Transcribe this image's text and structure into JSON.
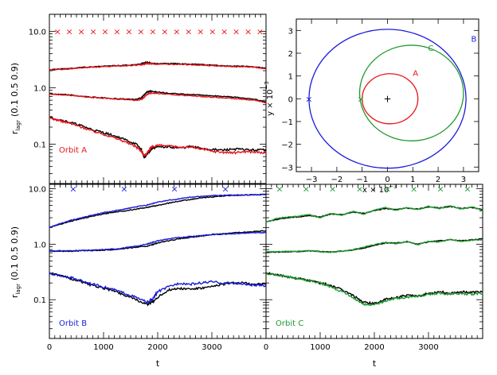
{
  "figure": {
    "panels": {
      "a": {
        "xlabel": "",
        "ylabel_main": "r",
        "ylabel_sub": "lagr",
        "ylabel_rest": "(0.1 0.5 0.9)",
        "label": "Orbit A"
      },
      "b": {
        "xlabel": "t",
        "ylabel_main": "r",
        "ylabel_sub": "lagr",
        "ylabel_rest": "(0.1 0.5 0.9)",
        "label": "Orbit B"
      },
      "c": {
        "xlabel": "t",
        "label": "Orbit C"
      },
      "orbit": {
        "xlabel": "x × 10",
        "xlabel_exp": "−3",
        "ylabel": "y × 10",
        "ylabel_exp": "−3",
        "labels": [
          "A",
          "B",
          "C"
        ]
      }
    }
  },
  "chart_data": [
    {
      "id": "a",
      "type": "line",
      "title": "",
      "xlabel": "",
      "ylabel": "r_lagr (0.1 0.5 0.9)",
      "xlim": [
        0,
        4000
      ],
      "ylim": [
        0.02,
        20
      ],
      "yscale": "log",
      "ytick_labels": [
        "0.1",
        "1.0",
        "10.0"
      ],
      "xtick_labels": [],
      "annotation": "Orbit A",
      "colors": {
        "sim": "#000000",
        "model": "#e8141c",
        "marker": "#e8141c"
      },
      "markers_x": [
        150,
        370,
        590,
        810,
        1030,
        1250,
        1470,
        1690,
        1910,
        2130,
        2350,
        2570,
        2790,
        3010,
        3230,
        3450,
        3670,
        3890
      ],
      "markers_y": 10.0,
      "x": [
        0,
        200,
        400,
        600,
        800,
        1000,
        1200,
        1400,
        1600,
        1700,
        1750,
        1800,
        1850,
        1900,
        2000,
        2200,
        2400,
        2600,
        2800,
        3000,
        3200,
        3400,
        3600,
        3800,
        4000
      ],
      "series": [
        {
          "group": "0.9",
          "color": "black",
          "values": [
            2.1,
            2.15,
            2.2,
            2.3,
            2.35,
            2.4,
            2.45,
            2.5,
            2.55,
            2.65,
            2.75,
            2.8,
            2.75,
            2.7,
            2.7,
            2.7,
            2.65,
            2.6,
            2.6,
            2.5,
            2.45,
            2.4,
            2.4,
            2.35,
            2.2
          ]
        },
        {
          "group": "0.9",
          "color": "red",
          "values": [
            2.05,
            2.1,
            2.15,
            2.25,
            2.3,
            2.35,
            2.4,
            2.45,
            2.5,
            2.55,
            2.6,
            2.7,
            2.7,
            2.65,
            2.6,
            2.6,
            2.6,
            2.55,
            2.5,
            2.45,
            2.4,
            2.35,
            2.35,
            2.3,
            2.15
          ]
        },
        {
          "group": "0.5",
          "color": "black",
          "values": [
            0.78,
            0.76,
            0.74,
            0.7,
            0.68,
            0.66,
            0.64,
            0.63,
            0.62,
            0.66,
            0.75,
            0.84,
            0.86,
            0.86,
            0.84,
            0.8,
            0.78,
            0.76,
            0.74,
            0.72,
            0.7,
            0.68,
            0.65,
            0.62,
            0.56
          ]
        },
        {
          "group": "0.5",
          "color": "red",
          "values": [
            0.77,
            0.75,
            0.73,
            0.7,
            0.67,
            0.65,
            0.63,
            0.62,
            0.6,
            0.62,
            0.68,
            0.76,
            0.8,
            0.8,
            0.79,
            0.76,
            0.74,
            0.72,
            0.7,
            0.68,
            0.66,
            0.64,
            0.62,
            0.6,
            0.54
          ]
        },
        {
          "group": "0.1",
          "color": "black",
          "values": [
            0.3,
            0.27,
            0.24,
            0.21,
            0.18,
            0.16,
            0.14,
            0.12,
            0.1,
            0.08,
            0.058,
            0.065,
            0.075,
            0.085,
            0.088,
            0.09,
            0.085,
            0.09,
            0.085,
            0.08,
            0.078,
            0.082,
            0.08,
            0.078,
            0.08
          ]
        },
        {
          "group": "0.1",
          "color": "red",
          "values": [
            0.29,
            0.26,
            0.23,
            0.2,
            0.17,
            0.15,
            0.13,
            0.11,
            0.09,
            0.075,
            0.062,
            0.07,
            0.08,
            0.09,
            0.095,
            0.092,
            0.088,
            0.09,
            0.082,
            0.075,
            0.072,
            0.07,
            0.074,
            0.072,
            0.07
          ]
        }
      ]
    },
    {
      "id": "orbit",
      "type": "line",
      "title": "",
      "xlabel": "x × 10^−3",
      "ylabel": "y × 10^−3",
      "xlim": [
        -3.6,
        3.6
      ],
      "ylim": [
        -3.2,
        3.5
      ],
      "xtick_labels": [
        "−3",
        "−2",
        "−1",
        "0",
        "1",
        "2",
        "3"
      ],
      "ytick_labels": [
        "−3",
        "−2",
        "−1",
        "0",
        "1",
        "2",
        "3"
      ],
      "orbits": [
        {
          "name": "A",
          "color": "#e8141c",
          "cx": 0.1,
          "cy": 0.0,
          "rx": 1.1,
          "ry": 1.1,
          "label_pos": [
            1.0,
            1.0
          ]
        },
        {
          "name": "B",
          "color": "#1a1adb",
          "cx": 0.0,
          "cy": 0.0,
          "rx": 3.1,
          "ry": 3.05,
          "label_pos": [
            3.3,
            2.5
          ]
        },
        {
          "name": "C",
          "color": "#1d9a2e",
          "cx": 0.95,
          "cy": 0.25,
          "rx": 2.05,
          "ry": 2.1,
          "label_pos": [
            1.6,
            2.1
          ]
        }
      ],
      "start_markers": [
        {
          "x": -3.1,
          "y": 0.0,
          "color": "#1a1adb"
        },
        {
          "x": -1.05,
          "y": 0.0,
          "color": "#1d9a2e"
        }
      ],
      "center_marker": {
        "x": 0.0,
        "y": 0.0,
        "color": "#000000"
      }
    },
    {
      "id": "b",
      "type": "line",
      "title": "",
      "xlabel": "t",
      "ylabel": "r_lagr (0.1 0.5 0.9)",
      "xlim": [
        0,
        4000
      ],
      "ylim": [
        0.02,
        12
      ],
      "yscale": "log",
      "ytick_labels": [
        "0.1",
        "1.0",
        "10.0"
      ],
      "xtick_labels": [
        "0",
        "1000",
        "2000",
        "3000"
      ],
      "annotation": "Orbit B",
      "colors": {
        "sim": "#000000",
        "model": "#1a1adb",
        "marker": "#1a1adb"
      },
      "markers_x": [
        440,
        1380,
        2310,
        3250
      ],
      "markers_y": 10.0,
      "x": [
        0,
        200,
        400,
        600,
        800,
        1000,
        1200,
        1400,
        1600,
        1800,
        1900,
        2000,
        2200,
        2400,
        2600,
        2800,
        3000,
        3200,
        3400,
        3600,
        3800,
        4000
      ],
      "series": [
        {
          "group": "0.9",
          "color": "black",
          "values": [
            2.0,
            2.3,
            2.6,
            2.9,
            3.2,
            3.5,
            3.8,
            4.0,
            4.3,
            4.6,
            4.8,
            5.0,
            5.5,
            6.0,
            6.4,
            6.8,
            7.1,
            7.4,
            7.6,
            7.7,
            7.8,
            7.9
          ]
        },
        {
          "group": "0.9",
          "color": "blue",
          "values": [
            2.0,
            2.35,
            2.7,
            3.0,
            3.35,
            3.7,
            4.0,
            4.3,
            4.7,
            5.1,
            5.4,
            5.7,
            6.2,
            6.6,
            7.0,
            7.3,
            7.5,
            7.6,
            7.7,
            7.7,
            7.8,
            7.8
          ]
        },
        {
          "group": "0.5",
          "color": "black",
          "values": [
            0.75,
            0.75,
            0.75,
            0.76,
            0.77,
            0.78,
            0.8,
            0.84,
            0.88,
            0.92,
            0.98,
            1.05,
            1.15,
            1.25,
            1.32,
            1.4,
            1.5,
            1.55,
            1.6,
            1.65,
            1.7,
            1.75
          ]
        },
        {
          "group": "0.5",
          "color": "blue",
          "values": [
            0.76,
            0.76,
            0.76,
            0.77,
            0.78,
            0.8,
            0.82,
            0.86,
            0.92,
            1.0,
            1.08,
            1.15,
            1.25,
            1.32,
            1.38,
            1.44,
            1.48,
            1.52,
            1.55,
            1.58,
            1.6,
            1.62
          ]
        },
        {
          "group": "0.1",
          "color": "black",
          "values": [
            0.3,
            0.27,
            0.24,
            0.21,
            0.18,
            0.16,
            0.145,
            0.12,
            0.1,
            0.082,
            0.09,
            0.11,
            0.15,
            0.16,
            0.155,
            0.16,
            0.17,
            0.19,
            0.2,
            0.2,
            0.19,
            0.19
          ]
        },
        {
          "group": "0.1",
          "color": "blue",
          "values": [
            0.3,
            0.27,
            0.25,
            0.22,
            0.19,
            0.17,
            0.15,
            0.13,
            0.11,
            0.09,
            0.1,
            0.14,
            0.17,
            0.2,
            0.19,
            0.2,
            0.21,
            0.2,
            0.2,
            0.19,
            0.18,
            0.18
          ]
        }
      ]
    },
    {
      "id": "c",
      "type": "line",
      "title": "",
      "xlabel": "t",
      "ylabel": "",
      "xlim": [
        0,
        4000
      ],
      "ylim": [
        0.02,
        12
      ],
      "yscale": "log",
      "ytick_labels": [],
      "xtick_labels": [
        "0",
        "1000",
        "2000",
        "3000"
      ],
      "annotation": "Orbit C",
      "colors": {
        "sim": "#000000",
        "model": "#1d9a2e",
        "marker": "#1d9a2e"
      },
      "markers_x": [
        250,
        740,
        1230,
        1730,
        2240,
        2730,
        3220,
        3720
      ],
      "markers_y": 10.0,
      "x": [
        0,
        200,
        400,
        600,
        800,
        1000,
        1200,
        1400,
        1600,
        1800,
        2000,
        2200,
        2400,
        2600,
        2800,
        3000,
        3200,
        3400,
        3600,
        3800,
        4000
      ],
      "series": [
        {
          "group": "0.9",
          "color": "black",
          "values": [
            2.5,
            2.8,
            3.0,
            3.1,
            3.3,
            3.1,
            3.5,
            3.4,
            3.8,
            3.6,
            4.0,
            4.4,
            4.2,
            4.5,
            4.3,
            4.7,
            4.5,
            4.8,
            4.4,
            4.6,
            4.2
          ]
        },
        {
          "group": "0.9",
          "color": "green",
          "values": [
            2.5,
            2.9,
            3.1,
            3.2,
            3.4,
            3.0,
            3.6,
            3.3,
            3.9,
            3.5,
            4.1,
            4.6,
            4.1,
            4.6,
            4.2,
            4.8,
            4.4,
            4.9,
            4.3,
            4.7,
            4.1
          ]
        },
        {
          "group": "0.5",
          "color": "black",
          "values": [
            0.72,
            0.72,
            0.73,
            0.74,
            0.76,
            0.74,
            0.72,
            0.75,
            0.78,
            0.85,
            0.95,
            1.05,
            1.05,
            1.1,
            1.0,
            1.1,
            1.15,
            1.2,
            1.15,
            1.2,
            1.25
          ]
        },
        {
          "group": "0.5",
          "color": "green",
          "values": [
            0.73,
            0.73,
            0.74,
            0.75,
            0.77,
            0.73,
            0.71,
            0.74,
            0.8,
            0.88,
            0.98,
            1.08,
            1.02,
            1.12,
            0.98,
            1.12,
            1.1,
            1.22,
            1.12,
            1.18,
            1.2
          ]
        },
        {
          "group": "0.1",
          "color": "black",
          "values": [
            0.3,
            0.28,
            0.26,
            0.24,
            0.22,
            0.2,
            0.18,
            0.15,
            0.12,
            0.09,
            0.085,
            0.1,
            0.11,
            0.12,
            0.115,
            0.13,
            0.14,
            0.13,
            0.14,
            0.135,
            0.14
          ]
        },
        {
          "group": "0.1",
          "color": "green",
          "values": [
            0.3,
            0.28,
            0.26,
            0.24,
            0.22,
            0.2,
            0.17,
            0.14,
            0.11,
            0.082,
            0.08,
            0.095,
            0.105,
            0.11,
            0.115,
            0.125,
            0.13,
            0.125,
            0.13,
            0.125,
            0.13
          ]
        }
      ]
    }
  ]
}
